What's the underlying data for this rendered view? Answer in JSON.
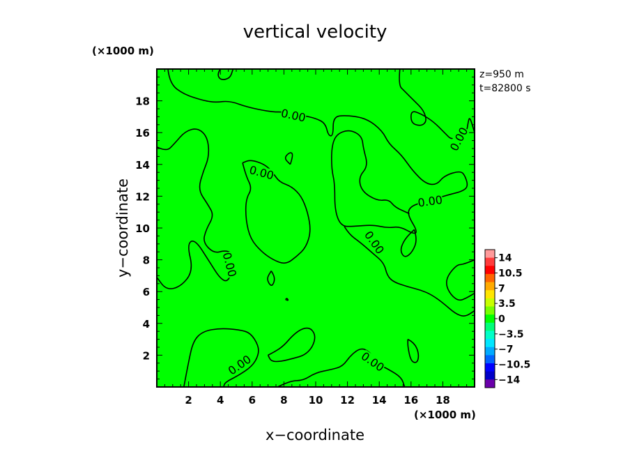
{
  "chart_data": {
    "type": "contour",
    "title": "vertical velocity",
    "xlabel": "x−coordinate",
    "ylabel": "y−coordinate",
    "x_unit": "(×1000 m)",
    "y_unit": "(×1000 m)",
    "xlim": [
      0,
      20
    ],
    "ylim": [
      0,
      20
    ],
    "x_ticks": [
      2,
      4,
      6,
      8,
      10,
      12,
      14,
      16,
      18
    ],
    "y_ticks": [
      2,
      4,
      6,
      8,
      10,
      12,
      14,
      16,
      18
    ],
    "x_tick_labels": [
      "2",
      "4",
      "6",
      "8",
      "10",
      "12",
      "14",
      "16",
      "18"
    ],
    "y_tick_labels": [
      "2",
      "4",
      "6",
      "8",
      "10",
      "12",
      "14",
      "16",
      "18"
    ],
    "info": [
      "z=950 m",
      "t=82800 s"
    ],
    "field_color": "#00ff00",
    "contour_level": 0,
    "contour_labels": [
      {
        "text": "0.00",
        "x": 8.6,
        "y": 17.1,
        "angle": 12
      },
      {
        "text": "0.00",
        "x": 19.0,
        "y": 15.6,
        "angle": -62
      },
      {
        "text": "0.00",
        "x": 6.6,
        "y": 13.5,
        "angle": 15
      },
      {
        "text": "0.00",
        "x": 17.2,
        "y": 11.7,
        "angle": -8
      },
      {
        "text": "0.00",
        "x": 13.7,
        "y": 9.1,
        "angle": 55
      },
      {
        "text": "0.00",
        "x": 4.6,
        "y": 7.7,
        "angle": 75
      },
      {
        "text": "0.00",
        "x": 5.2,
        "y": 1.4,
        "angle": -35
      },
      {
        "text": "0.00",
        "x": 13.6,
        "y": 1.6,
        "angle": 35
      }
    ],
    "contours": [
      [
        [
          0,
          15.1
        ],
        [
          0.6,
          14.8
        ],
        [
          1.1,
          15.3
        ],
        [
          1.8,
          16.1
        ],
        [
          2.6,
          16.3
        ],
        [
          3.2,
          15.7
        ],
        [
          3.3,
          14.5
        ],
        [
          2.9,
          13.5
        ],
        [
          2.6,
          12.4
        ],
        [
          3.2,
          11.5
        ],
        [
          3.6,
          10.8
        ],
        [
          3.1,
          9.9
        ],
        [
          2.9,
          9.1
        ],
        [
          3.6,
          8.4
        ],
        [
          4.3,
          8.6
        ],
        [
          4.8,
          8.4
        ],
        [
          4.8,
          7.6
        ],
        [
          4.5,
          6.6
        ],
        [
          4.0,
          6.8
        ],
        [
          3.3,
          7.9
        ],
        [
          2.4,
          9.3
        ],
        [
          1.9,
          9.0
        ],
        [
          2.3,
          7.3
        ],
        [
          1.5,
          6.3
        ],
        [
          0.6,
          6.1
        ],
        [
          0,
          6.9
        ]
      ],
      [
        [
          0.7,
          20
        ],
        [
          0.8,
          19.1
        ],
        [
          1.7,
          18.4
        ],
        [
          3.0,
          18.0
        ],
        [
          3.7,
          17.9
        ],
        [
          4.6,
          18.0
        ],
        [
          5.7,
          17.6
        ],
        [
          7.2,
          17.3
        ],
        [
          8.1,
          17.3
        ],
        [
          9.1,
          17.1
        ],
        [
          10.0,
          16.9
        ],
        [
          10.6,
          16.6
        ],
        [
          10.8,
          15.8
        ],
        [
          11.1,
          15.8
        ],
        [
          11.1,
          17.0
        ],
        [
          11.9,
          17.1
        ],
        [
          13.2,
          16.9
        ],
        [
          14.2,
          16.1
        ],
        [
          14.6,
          15.3
        ],
        [
          15.4,
          14.6
        ],
        [
          16.1,
          13.6
        ],
        [
          16.9,
          12.8
        ],
        [
          17.6,
          12.7
        ],
        [
          18.1,
          13.3
        ],
        [
          19.1,
          13.6
        ],
        [
          19.4,
          13.3
        ],
        [
          19.6,
          12.6
        ],
        [
          19.2,
          12.3
        ],
        [
          18.4,
          12.1
        ],
        [
          17.4,
          11.8
        ],
        [
          16.6,
          11.6
        ],
        [
          15.9,
          11.3
        ],
        [
          15.8,
          10.8
        ],
        [
          16.4,
          9.8
        ],
        [
          16.2,
          9.6
        ],
        [
          15.3,
          10.1
        ],
        [
          14.5,
          10.0
        ],
        [
          13.6,
          10.2
        ],
        [
          12.4,
          10.1
        ],
        [
          11.6,
          10.1
        ],
        [
          11.2,
          11.1
        ],
        [
          11.2,
          12.8
        ],
        [
          11.0,
          13.7
        ],
        [
          11.0,
          15.1
        ],
        [
          11.3,
          15.9
        ],
        [
          12.1,
          16.2
        ],
        [
          12.9,
          15.8
        ],
        [
          13.0,
          15.0
        ],
        [
          13.3,
          13.9
        ],
        [
          12.7,
          13.2
        ],
        [
          12.9,
          12.3
        ],
        [
          13.9,
          11.7
        ],
        [
          14.6,
          11.8
        ],
        [
          15.0,
          11.3
        ],
        [
          15.9,
          10.9
        ]
      ],
      [
        [
          4.0,
          20
        ],
        [
          3.8,
          19.7
        ],
        [
          4.0,
          19.3
        ],
        [
          4.6,
          19.4
        ],
        [
          4.8,
          20
        ]
      ],
      [
        [
          15.3,
          20
        ],
        [
          15.2,
          19.0
        ],
        [
          15.6,
          18.6
        ],
        [
          16.2,
          18.0
        ],
        [
          16.8,
          17.4
        ],
        [
          17.0,
          16.7
        ],
        [
          16.6,
          16.4
        ],
        [
          16.0,
          16.6
        ],
        [
          16.0,
          17.4
        ],
        [
          16.6,
          17.2
        ],
        [
          17.4,
          16.7
        ],
        [
          18.1,
          16.0
        ],
        [
          18.6,
          15.5
        ],
        [
          19.5,
          16.0
        ],
        [
          19.6,
          16.7
        ],
        [
          19.7,
          17.0
        ],
        [
          20,
          16.0
        ]
      ],
      [
        [
          5.4,
          14.1
        ],
        [
          5.6,
          13.3
        ],
        [
          6.0,
          12.5
        ],
        [
          5.6,
          11.8
        ],
        [
          5.6,
          10.5
        ],
        [
          5.9,
          9.3
        ],
        [
          6.6,
          8.5
        ],
        [
          7.3,
          8.0
        ],
        [
          8.1,
          7.7
        ],
        [
          8.8,
          8.2
        ],
        [
          9.4,
          8.8
        ],
        [
          9.7,
          9.8
        ],
        [
          9.5,
          11.0
        ],
        [
          9.1,
          12.0
        ],
        [
          8.5,
          12.6
        ],
        [
          7.7,
          12.9
        ],
        [
          7.3,
          13.5
        ],
        [
          6.8,
          14.0
        ],
        [
          5.9,
          14.3
        ],
        [
          5.4,
          14.1
        ]
      ],
      [
        [
          8.4,
          14.0
        ],
        [
          8.6,
          14.6
        ],
        [
          8.4,
          14.8
        ],
        [
          8.0,
          14.4
        ],
        [
          8.4,
          14.0
        ]
      ],
      [
        [
          16.2,
          9.9
        ],
        [
          16.4,
          9.3
        ],
        [
          16.1,
          8.5
        ],
        [
          15.6,
          8.1
        ],
        [
          15.3,
          8.6
        ],
        [
          15.6,
          9.3
        ],
        [
          16.2,
          9.9
        ]
      ],
      [
        [
          11.8,
          10.1
        ],
        [
          12.1,
          9.6
        ],
        [
          12.8,
          9.1
        ],
        [
          13.6,
          8.4
        ],
        [
          14.3,
          7.8
        ],
        [
          14.5,
          7.0
        ],
        [
          14.9,
          6.6
        ],
        [
          15.8,
          6.3
        ],
        [
          16.6,
          6.1
        ],
        [
          17.3,
          5.8
        ],
        [
          18.0,
          5.3
        ],
        [
          18.8,
          4.6
        ],
        [
          19.4,
          4.4
        ],
        [
          20,
          4.8
        ]
      ],
      [
        [
          20,
          8.0
        ],
        [
          19.3,
          7.7
        ],
        [
          18.9,
          7.7
        ],
        [
          18.3,
          7.0
        ],
        [
          18.2,
          6.4
        ],
        [
          18.5,
          5.8
        ],
        [
          19.0,
          5.4
        ],
        [
          19.5,
          5.6
        ],
        [
          20,
          5.9
        ]
      ],
      [
        [
          7.2,
          7.3
        ],
        [
          7.4,
          7.0
        ],
        [
          7.4,
          6.6
        ],
        [
          7.2,
          6.3
        ],
        [
          6.9,
          6.8
        ],
        [
          7.2,
          7.3
        ]
      ],
      [
        [
          8.1,
          5.5
        ],
        [
          8.3,
          5.4
        ],
        [
          8.2,
          5.6
        ],
        [
          8.1,
          5.5
        ]
      ],
      [
        [
          1.7,
          0
        ],
        [
          2.0,
          1.6
        ],
        [
          2.3,
          2.9
        ],
        [
          2.9,
          3.5
        ],
        [
          4.0,
          3.7
        ],
        [
          5.2,
          3.6
        ],
        [
          5.9,
          3.4
        ],
        [
          6.4,
          2.6
        ],
        [
          6.4,
          2.0
        ],
        [
          6.0,
          1.3
        ],
        [
          5.1,
          0.7
        ],
        [
          4.3,
          0.3
        ],
        [
          4.2,
          0
        ]
      ],
      [
        [
          7.0,
          2.0
        ],
        [
          7.4,
          2.2
        ],
        [
          8.0,
          2.6
        ],
        [
          8.6,
          3.3
        ],
        [
          9.2,
          3.7
        ],
        [
          9.7,
          3.7
        ],
        [
          10.0,
          3.2
        ],
        [
          9.8,
          2.5
        ],
        [
          9.3,
          2.0
        ],
        [
          8.6,
          1.8
        ],
        [
          7.8,
          1.6
        ],
        [
          7.2,
          1.6
        ],
        [
          7.0,
          2.0
        ]
      ],
      [
        [
          7.6,
          0
        ],
        [
          8.4,
          0.4
        ],
        [
          9.2,
          0.4
        ],
        [
          10.0,
          0.9
        ],
        [
          11.0,
          1.1
        ],
        [
          11.7,
          1.3
        ],
        [
          12.2,
          2.0
        ],
        [
          12.9,
          2.5
        ],
        [
          13.5,
          2.1
        ],
        [
          14.0,
          1.4
        ],
        [
          14.6,
          1.1
        ],
        [
          15.4,
          0.6
        ],
        [
          15.6,
          0
        ]
      ],
      [
        [
          15.8,
          3.0
        ],
        [
          16.2,
          2.8
        ],
        [
          16.5,
          2.1
        ],
        [
          16.4,
          1.5
        ],
        [
          16.0,
          1.6
        ],
        [
          15.8,
          2.5
        ],
        [
          15.8,
          3.0
        ]
      ]
    ],
    "colorbar": {
      "labels": [
        "14",
        "10.5",
        "7",
        "3.5",
        "0",
        "−3.5",
        "−7",
        "−10.5",
        "−14"
      ],
      "colors": [
        "#ff9a9a",
        "#ff3c3c",
        "#ff0000",
        "#ff6400",
        "#ffaa00",
        "#ffe600",
        "#c8ff00",
        "#78ff00",
        "#00ff00",
        "#00ff78",
        "#00ffc8",
        "#00e6ff",
        "#00aaff",
        "#0064ff",
        "#0000ff",
        "#0000c8",
        "#6a00aa"
      ]
    }
  }
}
